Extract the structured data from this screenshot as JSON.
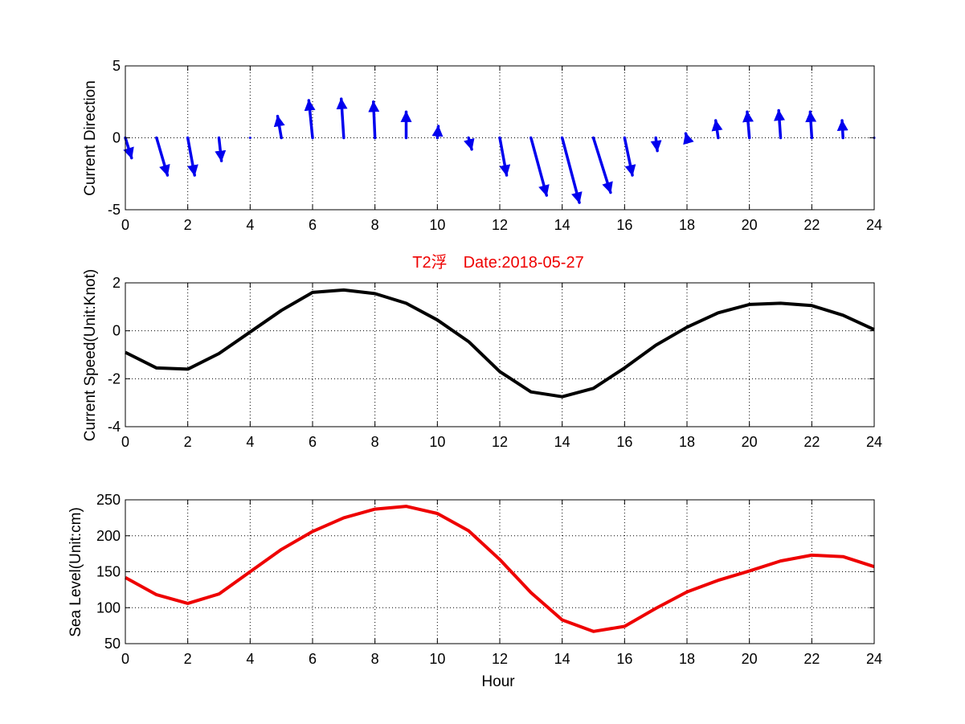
{
  "chart_data": [
    {
      "type": "quiver",
      "name": "current-direction",
      "xlabel": "",
      "ylabel": "Current Direction",
      "xlim": [
        0,
        24
      ],
      "ylim": [
        -5,
        5
      ],
      "xticks": [
        0,
        2,
        4,
        6,
        8,
        10,
        12,
        14,
        16,
        18,
        20,
        22,
        24
      ],
      "yticks": [
        -5,
        0,
        5
      ],
      "grid": true,
      "color": "#0000ee",
      "x": [
        0,
        1,
        2,
        3,
        4,
        5,
        6,
        7,
        8,
        9,
        10,
        11,
        12,
        13,
        14,
        15,
        16,
        17,
        18,
        19,
        20,
        21,
        22,
        23,
        24
      ],
      "u": [
        0.2,
        0.35,
        0.22,
        0.08,
        0.0,
        -0.12,
        -0.12,
        -0.08,
        -0.05,
        0.0,
        0.03,
        0.1,
        0.22,
        0.5,
        0.55,
        0.55,
        0.25,
        0.05,
        -0.04,
        -0.08,
        -0.07,
        -0.06,
        -0.05,
        -0.03,
        -0.01
      ],
      "v": [
        -1.4,
        -2.6,
        -2.6,
        -1.6,
        -0.1,
        1.5,
        2.6,
        2.7,
        2.5,
        1.8,
        0.8,
        -0.8,
        -2.6,
        -4.0,
        -4.5,
        -3.8,
        -2.6,
        -0.9,
        0.3,
        1.2,
        1.8,
        1.9,
        1.8,
        1.2,
        0.0
      ]
    },
    {
      "type": "line",
      "name": "current-speed",
      "title": "T2浮　Date:2018-05-27",
      "xlabel": "",
      "ylabel": "Current Speed(Unit:Knot)",
      "xlim": [
        0,
        24
      ],
      "ylim": [
        -4,
        2
      ],
      "xticks": [
        0,
        2,
        4,
        6,
        8,
        10,
        12,
        14,
        16,
        18,
        20,
        22,
        24
      ],
      "yticks": [
        -4,
        -2,
        0,
        2
      ],
      "grid": true,
      "color": "#000000",
      "x": [
        0,
        1,
        2,
        3,
        4,
        5,
        6,
        7,
        8,
        9,
        10,
        11,
        12,
        13,
        14,
        15,
        16,
        17,
        18,
        19,
        20,
        21,
        22,
        23,
        24
      ],
      "values": [
        -0.9,
        -1.55,
        -1.6,
        -0.95,
        -0.05,
        0.85,
        1.6,
        1.7,
        1.55,
        1.15,
        0.45,
        -0.45,
        -1.7,
        -2.55,
        -2.75,
        -2.4,
        -1.55,
        -0.6,
        0.15,
        0.75,
        1.1,
        1.15,
        1.05,
        0.65,
        0.05
      ]
    },
    {
      "type": "line",
      "name": "sea-level",
      "xlabel": "Hour",
      "ylabel": "Sea Level(Unit:cm)",
      "xlim": [
        0,
        24
      ],
      "ylim": [
        50,
        250
      ],
      "xticks": [
        0,
        2,
        4,
        6,
        8,
        10,
        12,
        14,
        16,
        18,
        20,
        22,
        24
      ],
      "yticks": [
        50,
        100,
        150,
        200,
        250
      ],
      "grid": true,
      "color": "#ee0000",
      "x": [
        0,
        1,
        2,
        3,
        4,
        5,
        6,
        7,
        8,
        9,
        10,
        11,
        12,
        13,
        14,
        15,
        16,
        17,
        18,
        19,
        20,
        21,
        22,
        23,
        24
      ],
      "values": [
        142,
        118,
        106,
        119,
        150,
        181,
        206,
        225,
        237,
        241,
        231,
        207,
        167,
        121,
        83,
        67,
        74,
        99,
        122,
        138,
        151,
        165,
        173,
        171,
        157
      ]
    }
  ]
}
